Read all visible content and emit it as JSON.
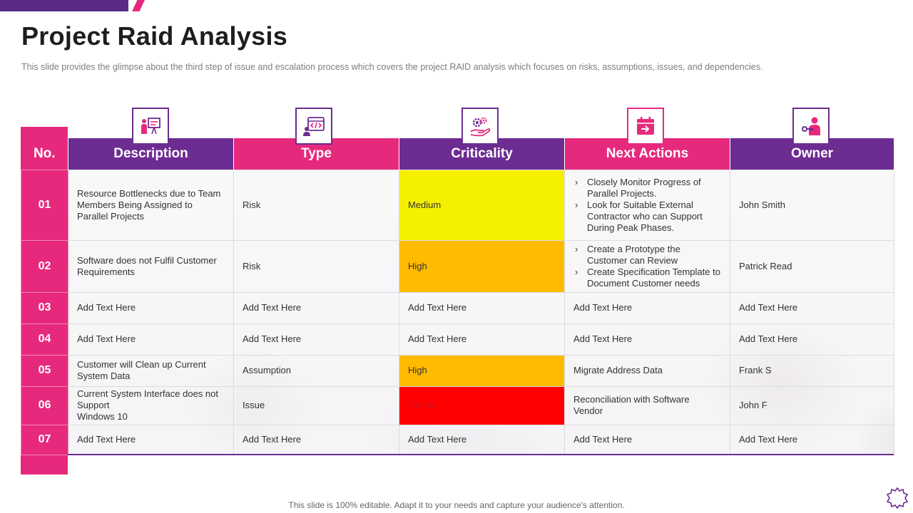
{
  "title": "Project Raid Analysis",
  "subtitle": "This slide provides  the glimpse about the third step of issue and escalation process which covers the project RAID analysis which focuses on risks, assumptions, issues, and dependencies.",
  "colors": {
    "purple": "#6d2c91",
    "pink": "#e6297d",
    "medium": "#f5ef00",
    "high": "#ffbb00",
    "critical": "#ff0000"
  },
  "icons": [
    "presentation-icon",
    "code-window-icon",
    "gears-hand-icon",
    "calendar-arrow-icon",
    "person-key-icon"
  ],
  "headers": {
    "no": "No.",
    "description": "Description",
    "type": "Type",
    "criticality": "Criticality",
    "next_actions": "Next Actions",
    "owner": "Owner"
  },
  "rows": [
    {
      "no": "01",
      "description": "Resource Bottlenecks due to Team Members Being Assigned to Parallel Projects",
      "type": "Risk",
      "criticality": "Medium",
      "actions": [
        "Closely Monitor Progress of Parallel Projects.",
        "Look for Suitable External Contractor who can Support During Peak Phases."
      ],
      "owner": "John Smith"
    },
    {
      "no": "02",
      "description": "Software does not Fulfil Customer Requirements",
      "type": "Risk",
      "criticality": "High",
      "actions": [
        "Create a Prototype the Customer can Review",
        "Create Specification Template to Document Customer needs"
      ],
      "owner": "Patrick Read"
    },
    {
      "no": "03",
      "description": "Add Text Here",
      "type": "Add Text Here",
      "criticality": "Add Text Here",
      "action": "Add Text Here",
      "owner": "Add Text Here"
    },
    {
      "no": "04",
      "description": "Add Text Here",
      "type": "Add Text Here",
      "criticality": "Add Text Here",
      "action": "Add Text Here",
      "owner": "Add Text Here"
    },
    {
      "no": "05",
      "description": "Customer will Clean up Current System Data",
      "type": "Assumption",
      "criticality": "High",
      "action": "Migrate Address Data",
      "owner": "Frank S"
    },
    {
      "no": "06",
      "description_line1": "Current System Interface does not Support",
      "description_line2": "Windows 10",
      "type": "Issue",
      "criticality": "Critical",
      "action": "Reconciliation with Software Vendor",
      "owner": "John F"
    },
    {
      "no": "07",
      "description": "Add Text Here",
      "type": "Add Text Here",
      "criticality": "Add Text Here",
      "action": "Add Text Here",
      "owner": "Add Text Here"
    }
  ],
  "footer": "This slide is 100% editable. Adapt it to your needs and capture your audience's attention."
}
